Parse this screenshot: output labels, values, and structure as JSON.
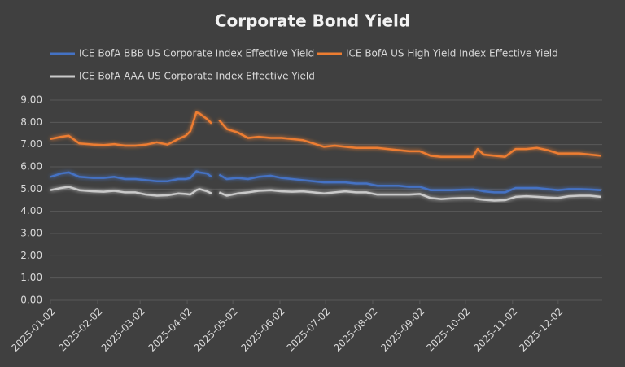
{
  "chart_data": {
    "type": "line",
    "title": "Corporate Bond Yield",
    "x": [
      "2025-01-02",
      "2025-01-09",
      "2025-01-14",
      "2025-01-21",
      "2025-01-30",
      "2025-02-06",
      "2025-02-13",
      "2025-02-20",
      "2025-02-27",
      "2025-03-06",
      "2025-03-13",
      "2025-03-20",
      "2025-03-27",
      "2025-04-01",
      "2025-04-04",
      "2025-04-08",
      "2025-04-10",
      "2025-04-15",
      "2025-04-18",
      "2025-04-21",
      "2025-04-23",
      "2025-04-28",
      "2025-05-05",
      "2025-05-12",
      "2025-05-19",
      "2025-05-27",
      "2025-06-03",
      "2025-06-10",
      "2025-06-17",
      "2025-06-24",
      "2025-07-01",
      "2025-07-08",
      "2025-07-15",
      "2025-07-22",
      "2025-07-29",
      "2025-08-05",
      "2025-08-12",
      "2025-08-19",
      "2025-08-26",
      "2025-09-02",
      "2025-09-09",
      "2025-09-16",
      "2025-09-23",
      "2025-09-30",
      "2025-10-07",
      "2025-10-10",
      "2025-10-14",
      "2025-10-21",
      "2025-10-28",
      "2025-11-04",
      "2025-11-11",
      "2025-11-18",
      "2025-11-25",
      "2025-12-02",
      "2025-12-09",
      "2025-12-16",
      "2025-12-23",
      "2025-12-30"
    ],
    "series": [
      {
        "name": "ICE BofA BBB US Corporate Index Effective Yield",
        "color": "#4472c4",
        "values": [
          5.55,
          5.7,
          5.75,
          5.55,
          5.5,
          5.5,
          5.55,
          5.45,
          5.45,
          5.4,
          5.35,
          5.35,
          5.45,
          5.45,
          5.5,
          5.8,
          5.75,
          5.7,
          5.55,
          null,
          5.65,
          5.45,
          5.5,
          5.45,
          5.55,
          5.6,
          5.5,
          5.45,
          5.4,
          5.35,
          5.3,
          5.3,
          5.3,
          5.25,
          5.25,
          5.15,
          5.15,
          5.15,
          5.1,
          5.1,
          4.95,
          4.95,
          4.95,
          4.97,
          4.98,
          4.95,
          4.9,
          4.85,
          4.85,
          5.05,
          5.05,
          5.05,
          5.0,
          4.95,
          5.0,
          5.0,
          4.98,
          4.95
        ]
      },
      {
        "name": "ICE BofA US High Yield Index Effective Yield",
        "color": "#ed7d31",
        "values": [
          7.25,
          7.35,
          7.4,
          7.05,
          7.0,
          6.98,
          7.02,
          6.95,
          6.95,
          7.0,
          7.1,
          7.0,
          7.25,
          7.4,
          7.6,
          8.45,
          8.4,
          8.15,
          7.95,
          null,
          8.1,
          7.7,
          7.55,
          7.3,
          7.35,
          7.3,
          7.3,
          7.25,
          7.2,
          7.05,
          6.9,
          6.95,
          6.9,
          6.85,
          6.85,
          6.85,
          6.8,
          6.75,
          6.7,
          6.7,
          6.5,
          6.45,
          6.45,
          6.45,
          6.45,
          6.8,
          6.55,
          6.5,
          6.45,
          6.8,
          6.8,
          6.85,
          6.75,
          6.6,
          6.6,
          6.6,
          6.55,
          6.5
        ]
      },
      {
        "name": "ICE BofA AAA US Corporate Index Effective Yield",
        "color": "#c9c9c9",
        "values": [
          4.95,
          5.05,
          5.1,
          4.95,
          4.9,
          4.88,
          4.92,
          4.85,
          4.85,
          4.75,
          4.7,
          4.72,
          4.8,
          4.78,
          4.75,
          4.95,
          5.0,
          4.9,
          4.8,
          null,
          4.85,
          4.7,
          4.8,
          4.85,
          4.92,
          4.95,
          4.9,
          4.88,
          4.9,
          4.85,
          4.8,
          4.85,
          4.9,
          4.85,
          4.85,
          4.75,
          4.75,
          4.75,
          4.75,
          4.78,
          4.6,
          4.55,
          4.58,
          4.6,
          4.6,
          4.55,
          4.52,
          4.48,
          4.5,
          4.65,
          4.68,
          4.65,
          4.62,
          4.6,
          4.68,
          4.7,
          4.7,
          4.65
        ]
      }
    ],
    "xlim": [
      "2025-01-02",
      "2025-12-31"
    ],
    "xticks": [
      "2025-01-02",
      "2025-02-02",
      "2025-03-02",
      "2025-04-02",
      "2025-05-02",
      "2025-06-02",
      "2025-07-02",
      "2025-08-02",
      "2025-09-02",
      "2025-10-02",
      "2025-11-02",
      "2025-12-02"
    ],
    "ylim": [
      0,
      9
    ],
    "yticks": [
      {
        "value": 0,
        "label": "0.00"
      },
      {
        "value": 1,
        "label": "1.00"
      },
      {
        "value": 2,
        "label": "2.00"
      },
      {
        "value": 3,
        "label": "3.00"
      },
      {
        "value": 4,
        "label": "4.00"
      },
      {
        "value": 5,
        "label": "5.00"
      },
      {
        "value": 6,
        "label": "6.00"
      },
      {
        "value": 7,
        "label": "7.00"
      },
      {
        "value": 8,
        "label": "8.00"
      },
      {
        "value": 9,
        "label": "9.00"
      }
    ],
    "grid": true
  }
}
